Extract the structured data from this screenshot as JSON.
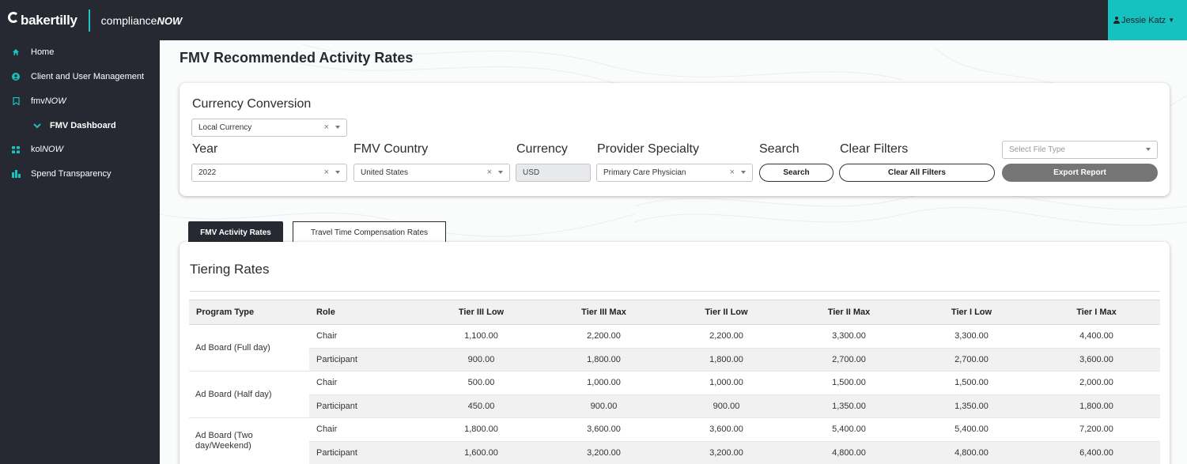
{
  "header": {
    "brand": "bakertilly",
    "product_plain": "compliance",
    "product_italic": "NOW",
    "user_name": "Jessie Katz"
  },
  "sidebar": {
    "items": [
      {
        "label": "Home",
        "icon": "home-icon"
      },
      {
        "label": "Client and User Management",
        "icon": "user-circle-icon"
      },
      {
        "label_plain": "fmv",
        "label_italic": "NOW",
        "icon": "bookmark-icon"
      },
      {
        "label": "FMV Dashboard",
        "icon": "chevron-down-icon"
      },
      {
        "label_plain": "kol",
        "label_italic": "NOW",
        "icon": "grid-icon"
      },
      {
        "label": "Spend Transparency",
        "icon": "bar-chart-icon"
      }
    ]
  },
  "page": {
    "title": "FMV Recommended Activity Rates"
  },
  "filters": {
    "currency_conversion_label": "Currency Conversion",
    "currency_conversion_value": "Local Currency",
    "year_label": "Year",
    "year_value": "2022",
    "country_label": "FMV Country",
    "country_value": "United States",
    "currency_label": "Currency",
    "currency_value": "USD",
    "specialty_label": "Provider Specialty",
    "specialty_value": "Primary Care Physician",
    "search_label": "Search",
    "search_button": "Search",
    "clear_label": "Clear Filters",
    "clear_button": "Clear All Filters",
    "file_type_placeholder": "Select File Type",
    "export_button": "Export Report",
    "clear_symbol": "×"
  },
  "tabs": [
    {
      "label": "FMV Activity Rates",
      "active": true
    },
    {
      "label": "Travel Time Compensation Rates",
      "active": false
    }
  ],
  "table": {
    "title": "Tiering Rates",
    "headers": [
      "Program Type",
      "Role",
      "Tier III Low",
      "Tier III Max",
      "Tier II Low",
      "Tier II Max",
      "Tier I Low",
      "Tier I Max"
    ],
    "groups": [
      {
        "program": "Ad Board (Full day)",
        "rows": [
          {
            "role": "Chair",
            "values": [
              "1,100.00",
              "2,200.00",
              "2,200.00",
              "3,300.00",
              "3,300.00",
              "4,400.00"
            ]
          },
          {
            "role": "Participant",
            "values": [
              "900.00",
              "1,800.00",
              "1,800.00",
              "2,700.00",
              "2,700.00",
              "3,600.00"
            ]
          }
        ]
      },
      {
        "program": "Ad Board (Half day)",
        "rows": [
          {
            "role": "Chair",
            "values": [
              "500.00",
              "1,000.00",
              "1,000.00",
              "1,500.00",
              "1,500.00",
              "2,000.00"
            ]
          },
          {
            "role": "Participant",
            "values": [
              "450.00",
              "900.00",
              "900.00",
              "1,350.00",
              "1,350.00",
              "1,800.00"
            ]
          }
        ]
      },
      {
        "program": "Ad Board (Two day/Weekend)",
        "rows": [
          {
            "role": "Chair",
            "values": [
              "1,800.00",
              "3,600.00",
              "3,600.00",
              "5,400.00",
              "5,400.00",
              "7,200.00"
            ]
          },
          {
            "role": "Participant",
            "values": [
              "1,600.00",
              "3,200.00",
              "3,200.00",
              "4,800.00",
              "4,800.00",
              "6,400.00"
            ]
          }
        ]
      }
    ]
  },
  "colors": {
    "nav_bg": "#262932",
    "accent_teal": "#16c2c0",
    "export_gray": "#757575"
  }
}
